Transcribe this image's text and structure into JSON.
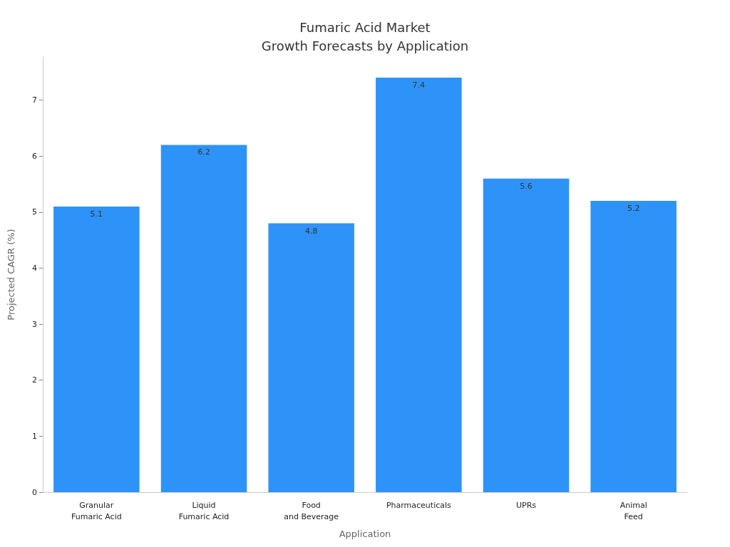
{
  "chart_data": {
    "type": "bar",
    "title": "Fumaric Acid Market\nGrowth Forecasts by Application",
    "xlabel": "Application",
    "ylabel": "Projected CAGR (%)",
    "categories": [
      "Granular\nFumaric Acid",
      "Liquid\nFumaric Acid",
      "Food\nand Beverage",
      "Pharmaceuticals",
      "UPRs",
      "Animal\nFeed"
    ],
    "values": [
      5.1,
      6.2,
      4.8,
      7.4,
      5.6,
      5.2
    ],
    "color": "#2e93f8",
    "ylim": [
      0,
      7.77
    ],
    "yticks": [
      0,
      1,
      2,
      3,
      4,
      5,
      6,
      7
    ],
    "data_labels": true
  }
}
